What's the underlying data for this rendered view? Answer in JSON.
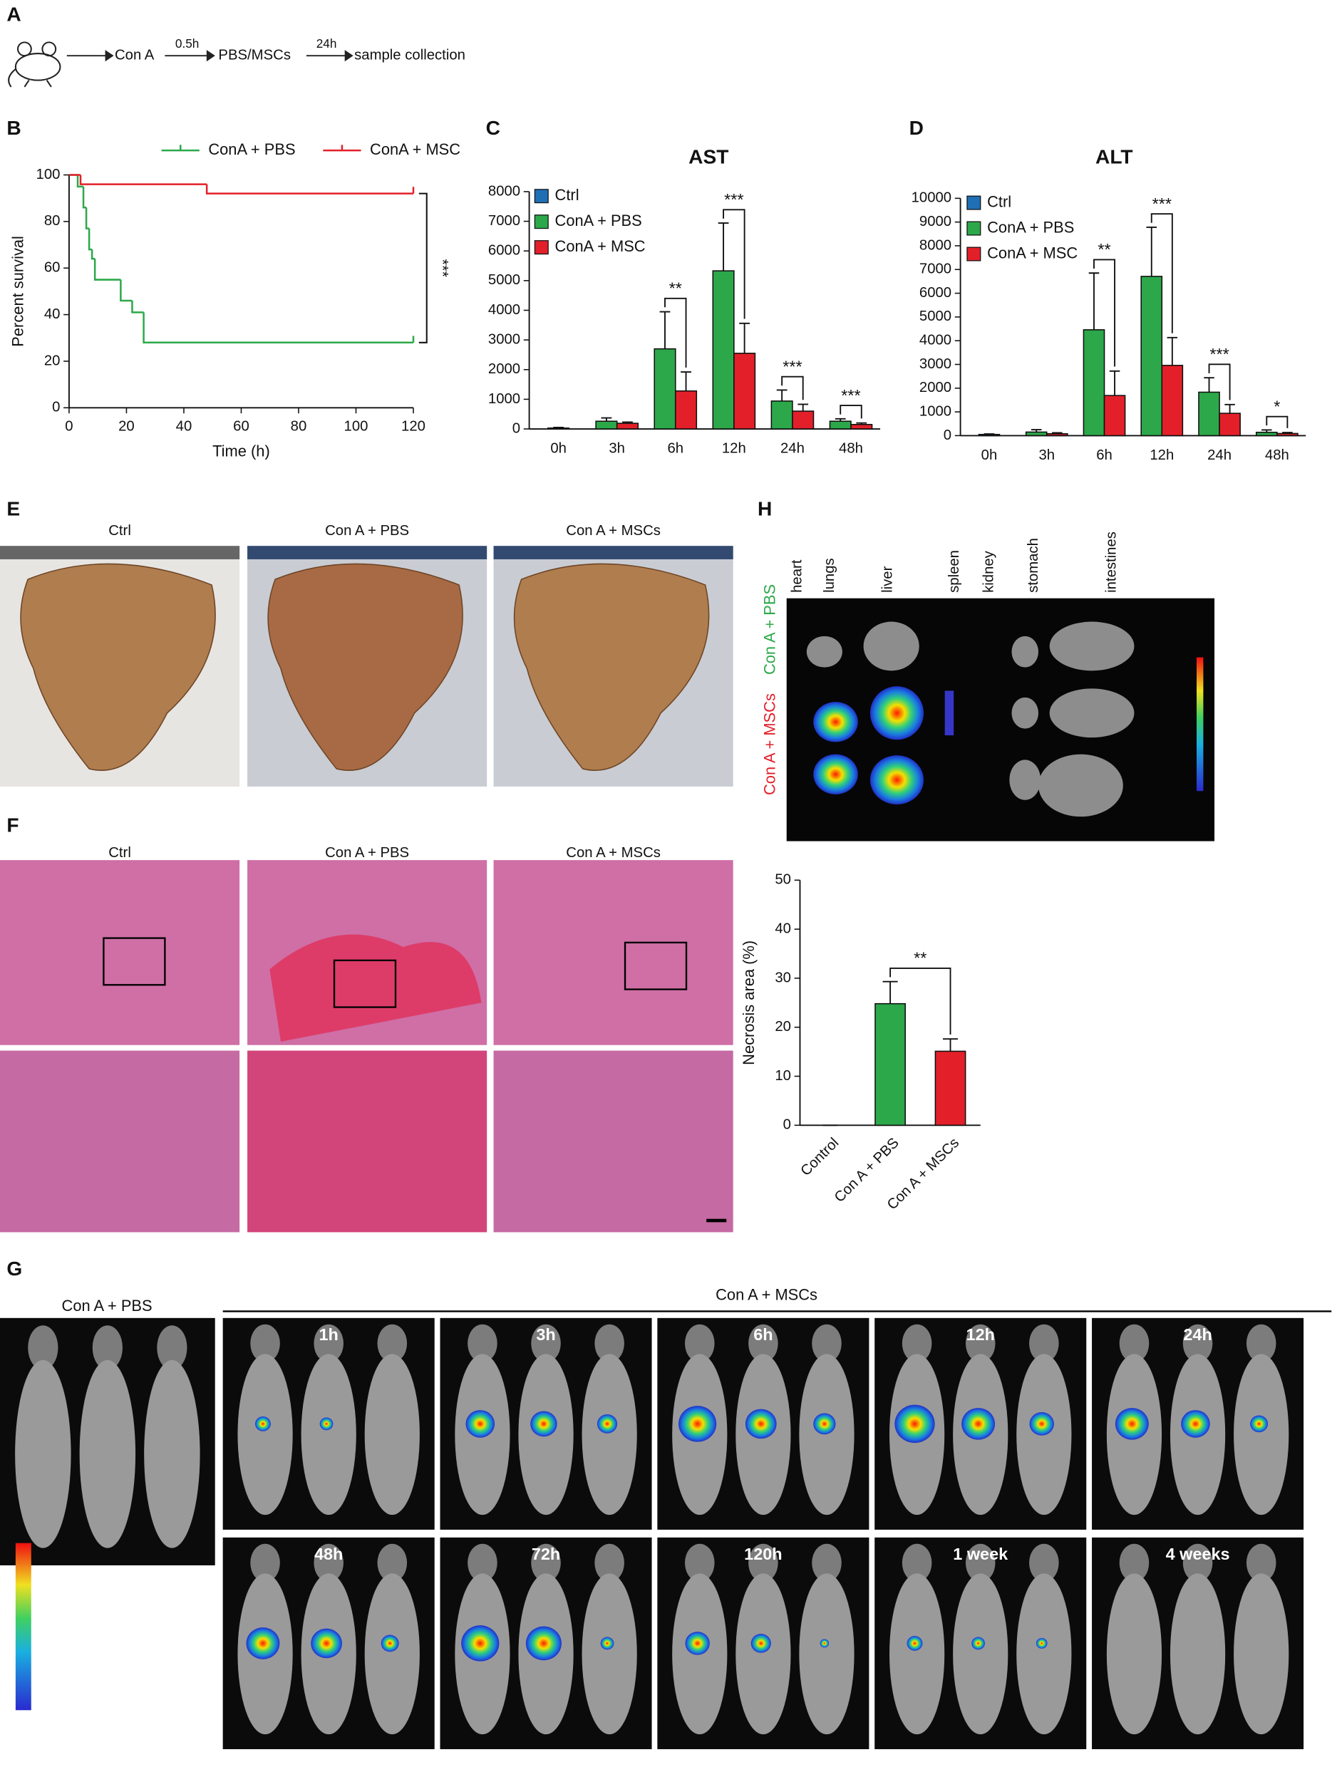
{
  "panel_labels": [
    "A",
    "B",
    "C",
    "D",
    "E",
    "F",
    "G",
    "H"
  ],
  "schematic": {
    "steps": [
      "Con A",
      "PBS/MSCs",
      "sample collection"
    ],
    "arrow_labels": [
      "0.5h",
      "24h"
    ]
  },
  "chart_data": [
    {
      "type": "line",
      "step": true,
      "x_label": "Time (h)",
      "y_label": "Percent survival",
      "xlim": [
        0,
        120
      ],
      "xticks": [
        0,
        20,
        40,
        60,
        80,
        100,
        120
      ],
      "ylim": [
        0,
        100
      ],
      "yticks": [
        0,
        20,
        40,
        60,
        80,
        100
      ],
      "legend": "top",
      "annotation": "***",
      "series": [
        {
          "name": "ConA + PBS",
          "color": "#2ca84a",
          "x": [
            0,
            3,
            5,
            6,
            7,
            8,
            9,
            18,
            22,
            26,
            120
          ],
          "values": [
            100,
            95,
            86,
            77,
            68,
            64,
            55,
            46,
            41,
            28,
            28
          ]
        },
        {
          "name": "ConA + MSC",
          "color": "#e3202a",
          "x": [
            0,
            4,
            48,
            120
          ],
          "values": [
            100,
            96,
            92,
            92
          ]
        }
      ]
    },
    {
      "type": "bar",
      "title": "AST",
      "legend": "top-left",
      "categories": [
        "0h",
        "3h",
        "6h",
        "12h",
        "24h",
        "48h"
      ],
      "ylim": [
        0,
        8000
      ],
      "yticks": [
        0,
        1000,
        2000,
        3000,
        4000,
        5000,
        6000,
        7000,
        8000
      ],
      "series": [
        {
          "name": "Ctrl",
          "color": "#1f6fb5",
          "values": [
            30,
            null,
            null,
            null,
            null,
            null
          ],
          "errors": [
            20,
            null,
            null,
            null,
            null,
            null
          ]
        },
        {
          "name": "ConA + PBS",
          "color": "#2ca84a",
          "values": [
            null,
            260,
            2700,
            5330,
            940,
            260
          ],
          "errors": [
            null,
            110,
            1250,
            1610,
            370,
            80
          ]
        },
        {
          "name": "ConA + MSC",
          "color": "#e3202a",
          "values": [
            null,
            190,
            1280,
            2550,
            600,
            150
          ],
          "errors": [
            null,
            40,
            640,
            1010,
            230,
            50
          ]
        }
      ],
      "significance": [
        null,
        null,
        "**",
        "***",
        "***",
        "***"
      ]
    },
    {
      "type": "bar",
      "title": "ALT",
      "legend": "top-left",
      "categories": [
        "0h",
        "3h",
        "6h",
        "12h",
        "24h",
        "48h"
      ],
      "ylim": [
        0,
        10000
      ],
      "yticks": [
        0,
        1000,
        2000,
        3000,
        4000,
        5000,
        6000,
        7000,
        8000,
        9000,
        10000
      ],
      "series": [
        {
          "name": "Ctrl",
          "color": "#1f6fb5",
          "values": [
            50,
            null,
            null,
            null,
            null,
            null
          ],
          "errors": [
            20,
            null,
            null,
            null,
            null,
            null
          ]
        },
        {
          "name": "ConA + PBS",
          "color": "#2ca84a",
          "values": [
            null,
            150,
            4460,
            6710,
            1830,
            140
          ],
          "errors": [
            null,
            100,
            2390,
            2070,
            610,
            100
          ]
        },
        {
          "name": "ConA + MSC",
          "color": "#e3202a",
          "values": [
            null,
            80,
            1690,
            2960,
            940,
            90
          ],
          "errors": [
            null,
            40,
            1030,
            1170,
            370,
            40
          ]
        }
      ],
      "significance": [
        null,
        null,
        "**",
        "***",
        "***",
        "*"
      ]
    },
    {
      "type": "bar",
      "y_label": "Necrosis area (%)",
      "category_label_rotation": -45,
      "categories": [
        "Control",
        "Con A + PBS",
        "Con A + MSCs"
      ],
      "values": [
        0,
        24.8,
        15.1
      ],
      "errors": [
        0,
        4.5,
        2.5
      ],
      "colors": [
        "#1f6fb5",
        "#2ca84a",
        "#e3202a"
      ],
      "ylim": [
        0,
        50
      ],
      "yticks": [
        0,
        10,
        20,
        30,
        40,
        50
      ],
      "significance": [
        null,
        null,
        "**"
      ]
    }
  ],
  "panels": {
    "E": {
      "titles": [
        "Ctrl",
        "Con A + PBS",
        "Con A + MSCs"
      ]
    },
    "F": {
      "titles": [
        "Ctrl",
        "Con A + PBS",
        "Con A + MSCs"
      ]
    },
    "H": {
      "organs": [
        "heart",
        "lungs",
        "liver",
        "spleen",
        "kidney",
        "stomach",
        "intestines"
      ],
      "rows": [
        "Con A + PBS",
        "Con A + MSCs"
      ]
    },
    "G": {
      "control": "Con A + PBS",
      "group": "Con A + MSCs",
      "times": [
        "1h",
        "3h",
        "6h",
        "12h",
        "24h",
        "48h",
        "72h",
        "120h",
        "1 week",
        "4 weeks"
      ]
    }
  }
}
